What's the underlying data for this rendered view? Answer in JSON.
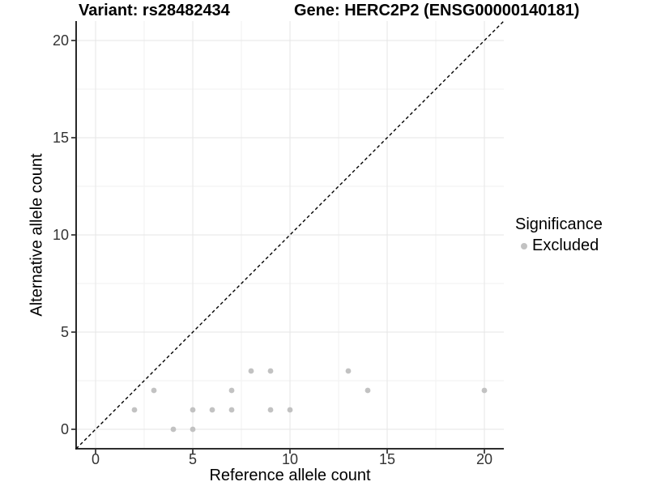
{
  "chart_data": {
    "type": "scatter",
    "left_title": "Variant: rs28482434",
    "right_title": "Gene: HERC2P2 (ENSG00000140181)",
    "xlabel": "Reference allele count",
    "ylabel": "Alternative allele count",
    "xlim": [
      -1,
      21
    ],
    "ylim": [
      -1,
      21
    ],
    "x_ticks": [
      0,
      5,
      10,
      15,
      20
    ],
    "y_ticks": [
      0,
      5,
      10,
      15,
      20
    ],
    "minor_gridlines": [
      2.5,
      7.5,
      12.5,
      17.5
    ],
    "grid": "major+minor",
    "legend": {
      "title": "Significance",
      "position": "right",
      "items": [
        {
          "label": "Excluded",
          "color": "#c2c2c2"
        }
      ]
    },
    "identity_line": {
      "style": "dashed",
      "color": "#000000",
      "from": -1,
      "to": 21
    },
    "series": [
      {
        "name": "Excluded",
        "color": "#c2c2c2",
        "marker": "circle",
        "points": [
          [
            2,
            1
          ],
          [
            3,
            2
          ],
          [
            4,
            0
          ],
          [
            5,
            0
          ],
          [
            5,
            1
          ],
          [
            6,
            1
          ],
          [
            7,
            1
          ],
          [
            7,
            2
          ],
          [
            8,
            3
          ],
          [
            9,
            1
          ],
          [
            9,
            3
          ],
          [
            10,
            1
          ],
          [
            13,
            3
          ],
          [
            14,
            2
          ],
          [
            20,
            2
          ]
        ]
      }
    ],
    "style": {
      "grid_major_color": "#e6e6e6",
      "grid_minor_color": "#f2f2f2",
      "axis_line_color": "#111111",
      "tick_color": "#222222",
      "tick_label_color": "#333333",
      "point_radius": 3.4,
      "background": "#ffffff"
    }
  }
}
